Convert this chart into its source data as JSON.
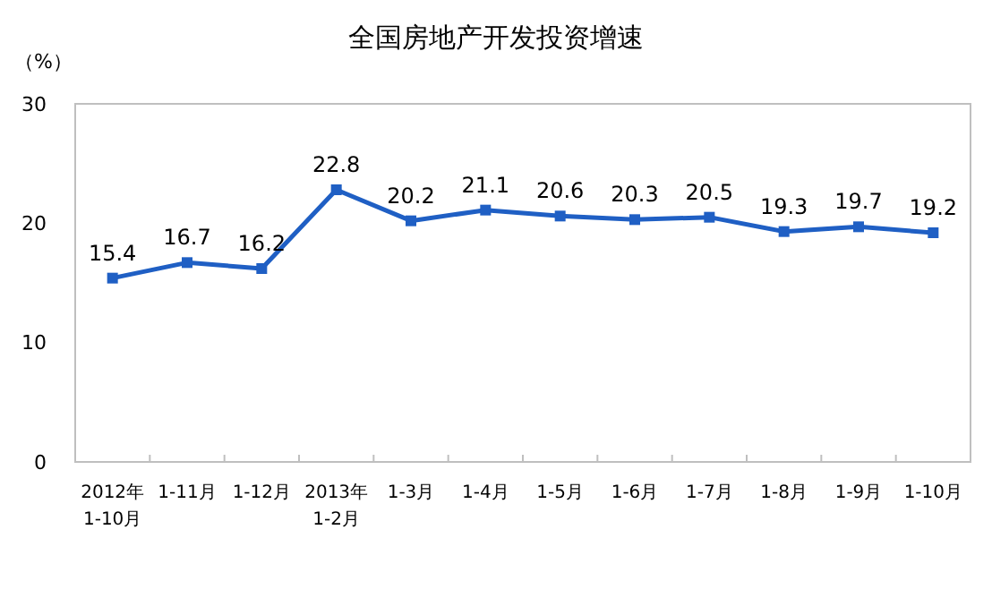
{
  "chart_data": {
    "type": "line",
    "title": "全国房地产开发投资增速",
    "ylabel": "（%）",
    "categories": [
      "2012年\n1-10月",
      "1-11月",
      "1-12月",
      "2013年\n1-2月",
      "1-3月",
      "1-4月",
      "1-5月",
      "1-6月",
      "1-7月",
      "1-8月",
      "1-9月",
      "1-10月"
    ],
    "series": [
      {
        "color": "#1f5fc4",
        "values": [
          15.4,
          16.7,
          16.2,
          22.8,
          20.2,
          21.1,
          20.6,
          20.3,
          20.5,
          19.3,
          19.7,
          19.2
        ]
      }
    ],
    "ylim": [
      0,
      30
    ],
    "yticks": [
      0,
      10,
      20,
      30
    ],
    "grid": false,
    "marker": "square",
    "line_style": "solid",
    "data_labels": true
  }
}
